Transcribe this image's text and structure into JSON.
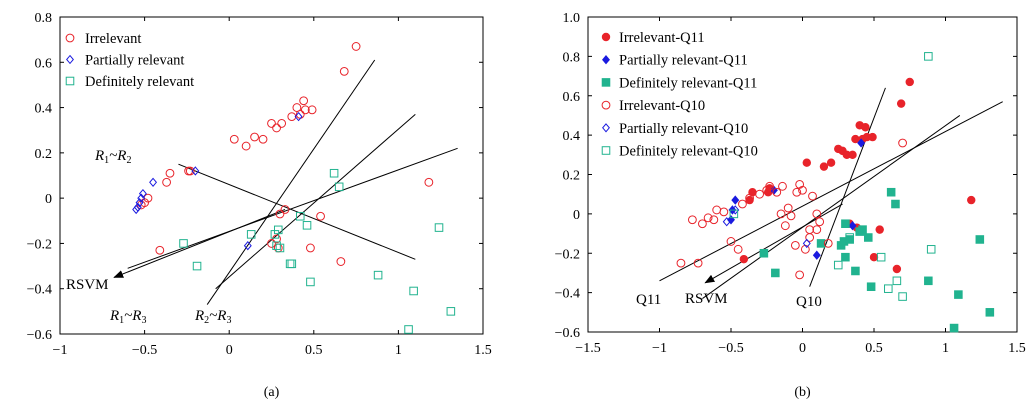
{
  "chart_data": [
    {
      "type": "scatter",
      "panel_label": "(a)",
      "xlim": [
        -1,
        1.5
      ],
      "ylim": [
        -0.6,
        0.8
      ],
      "xticks": [
        -1,
        -0.5,
        0,
        0.5,
        1,
        1.5
      ],
      "yticks": [
        -0.6,
        -0.4,
        -0.2,
        0,
        0.2,
        0.4,
        0.6,
        0.8
      ],
      "xtick_labels": [
        "−1",
        "−0.5",
        "0",
        "0.5",
        "1",
        "1.5"
      ],
      "ytick_labels": [
        "−0.6",
        "−0.4",
        "−0.2",
        "0",
        "0.2",
        "0.4",
        "0.6",
        "0.8"
      ],
      "legend_position": "top-left",
      "series": [
        {
          "name": "Irrelevant",
          "marker": "circle-open",
          "color": "#e8232a",
          "points": [
            [
              -0.52,
              -0.03
            ],
            [
              -0.5,
              -0.02
            ],
            [
              -0.48,
              0.0
            ],
            [
              -0.41,
              -0.23
            ],
            [
              -0.37,
              0.07
            ],
            [
              -0.35,
              0.11
            ],
            [
              -0.24,
              0.12
            ],
            [
              -0.23,
              0.12
            ],
            [
              0.03,
              0.26
            ],
            [
              0.1,
              0.23
            ],
            [
              0.15,
              0.27
            ],
            [
              0.2,
              0.26
            ],
            [
              0.25,
              0.33
            ],
            [
              0.28,
              0.31
            ],
            [
              0.31,
              0.33
            ],
            [
              0.25,
              -0.2
            ],
            [
              0.28,
              -0.18
            ],
            [
              0.29,
              -0.22
            ],
            [
              0.33,
              -0.05
            ],
            [
              0.37,
              0.36
            ],
            [
              0.4,
              0.4
            ],
            [
              0.42,
              0.37
            ],
            [
              0.44,
              0.43
            ],
            [
              0.45,
              0.39
            ],
            [
              0.49,
              0.39
            ],
            [
              0.54,
              -0.08
            ],
            [
              0.48,
              -0.22
            ],
            [
              0.66,
              -0.28
            ],
            [
              0.68,
              0.56
            ],
            [
              0.75,
              0.67
            ],
            [
              1.18,
              0.07
            ],
            [
              0.3,
              -0.07
            ]
          ]
        },
        {
          "name": "Partially relevant",
          "marker": "diamond-open",
          "color": "#1a1adf",
          "points": [
            [
              -0.54,
              -0.04
            ],
            [
              -0.53,
              -0.02
            ],
            [
              -0.52,
              0.0
            ],
            [
              -0.51,
              0.02
            ],
            [
              -0.2,
              0.12
            ],
            [
              -0.55,
              -0.05
            ],
            [
              0.11,
              -0.21
            ],
            [
              0.41,
              0.36
            ],
            [
              -0.45,
              0.07
            ]
          ]
        },
        {
          "name": "Definitely relevant",
          "marker": "square-open",
          "color": "#21b38f",
          "points": [
            [
              -0.27,
              -0.2
            ],
            [
              -0.19,
              -0.3
            ],
            [
              0.13,
              -0.16
            ],
            [
              0.27,
              -0.16
            ],
            [
              0.29,
              -0.14
            ],
            [
              0.3,
              -0.22
            ],
            [
              0.36,
              -0.29
            ],
            [
              0.37,
              -0.29
            ],
            [
              0.42,
              -0.08
            ],
            [
              0.46,
              -0.12
            ],
            [
              0.48,
              -0.37
            ],
            [
              0.62,
              0.11
            ],
            [
              0.65,
              0.05
            ],
            [
              0.88,
              -0.34
            ],
            [
              1.06,
              -0.58
            ],
            [
              1.09,
              -0.41
            ],
            [
              1.24,
              -0.13
            ],
            [
              1.31,
              -0.5
            ],
            [
              0.28,
              -0.21
            ]
          ]
        }
      ],
      "lines": [
        {
          "label_base": "R",
          "label_sub1": "1",
          "label_mid": "~R",
          "label_sub2": "2",
          "from": [
            -0.3,
            0.15
          ],
          "to": [
            1.1,
            -0.27
          ]
        },
        {
          "label_base": "R",
          "label_sub1": "1",
          "label_mid": "~R",
          "label_sub2": "3",
          "from": [
            -0.13,
            -0.47
          ],
          "to": [
            0.86,
            0.61
          ]
        },
        {
          "label_base": "R",
          "label_sub1": "2",
          "label_mid": "~R",
          "label_sub2": "3",
          "from": [
            -0.08,
            -0.4
          ],
          "to": [
            1.1,
            0.37
          ]
        },
        {
          "label": "",
          "from": [
            -0.6,
            -0.31
          ],
          "to": [
            1.35,
            0.22
          ]
        }
      ],
      "arrow": {
        "label": "RSVM",
        "from": [
          0.33,
          -0.05
        ],
        "to": [
          -0.68,
          -0.35
        ]
      }
    },
    {
      "type": "scatter",
      "panel_label": "(b)",
      "xlim": [
        -1.5,
        1.5
      ],
      "ylim": [
        -0.6,
        1.0
      ],
      "xticks": [
        -1.5,
        -1,
        -0.5,
        0,
        0.5,
        1,
        1.5
      ],
      "yticks": [
        -0.6,
        -0.4,
        -0.2,
        0,
        0.2,
        0.4,
        0.6,
        0.8,
        1.0
      ],
      "xtick_labels": [
        "−1.5",
        "−1",
        "−0.5",
        "0",
        "0.5",
        "1",
        "1.5"
      ],
      "ytick_labels": [
        "−0.6",
        "−0.4",
        "−0.2",
        "0",
        "0.2",
        "0.4",
        "0.6",
        "0.8",
        "1.0"
      ],
      "legend_position": "top-left",
      "series": [
        {
          "name": "Irrelevant-Q11",
          "marker": "circle-filled",
          "color": "#e8232a",
          "points": [
            [
              -0.41,
              -0.23
            ],
            [
              -0.37,
              0.07
            ],
            [
              -0.35,
              0.11
            ],
            [
              -0.24,
              0.11
            ],
            [
              -0.23,
              0.13
            ],
            [
              0.03,
              0.26
            ],
            [
              0.15,
              0.24
            ],
            [
              0.2,
              0.26
            ],
            [
              0.25,
              0.33
            ],
            [
              0.28,
              0.32
            ],
            [
              0.31,
              0.3
            ],
            [
              0.35,
              0.3
            ],
            [
              0.37,
              0.38
            ],
            [
              0.4,
              0.45
            ],
            [
              0.42,
              0.38
            ],
            [
              0.44,
              0.44
            ],
            [
              0.45,
              0.39
            ],
            [
              0.49,
              0.39
            ],
            [
              0.5,
              -0.22
            ],
            [
              0.54,
              -0.08
            ],
            [
              0.66,
              -0.28
            ],
            [
              0.69,
              0.56
            ],
            [
              0.75,
              0.67
            ],
            [
              1.18,
              0.07
            ],
            [
              0.38,
              -0.07
            ],
            [
              0.33,
              -0.05
            ]
          ]
        },
        {
          "name": "Partially relevant-Q11",
          "marker": "diamond-filled",
          "color": "#1a1adf",
          "points": [
            [
              -0.5,
              -0.03
            ],
            [
              -0.49,
              0.02
            ],
            [
              -0.47,
              0.07
            ],
            [
              -0.2,
              0.12
            ],
            [
              0.1,
              -0.21
            ],
            [
              0.41,
              0.36
            ],
            [
              0.35,
              -0.06
            ]
          ]
        },
        {
          "name": "Definitely relevant-Q11",
          "marker": "square-filled",
          "color": "#21b38f",
          "points": [
            [
              0.13,
              -0.15
            ],
            [
              0.27,
              -0.16
            ],
            [
              0.29,
              -0.14
            ],
            [
              0.3,
              -0.22
            ],
            [
              0.37,
              -0.29
            ],
            [
              0.42,
              -0.08
            ],
            [
              0.46,
              -0.12
            ],
            [
              0.48,
              -0.37
            ],
            [
              0.62,
              0.11
            ],
            [
              0.65,
              0.05
            ],
            [
              0.88,
              -0.34
            ],
            [
              1.06,
              -0.58
            ],
            [
              1.09,
              -0.41
            ],
            [
              1.24,
              -0.13
            ],
            [
              1.31,
              -0.5
            ],
            [
              0.3,
              -0.05
            ],
            [
              -0.19,
              -0.3
            ],
            [
              0.33,
              -0.13
            ],
            [
              0.4,
              -0.09
            ],
            [
              -0.27,
              -0.2
            ]
          ]
        },
        {
          "name": "Irrelevant-Q10",
          "marker": "circle-open",
          "color": "#e8232a",
          "points": [
            [
              -0.77,
              -0.03
            ],
            [
              -0.7,
              -0.05
            ],
            [
              -0.66,
              -0.02
            ],
            [
              -0.62,
              -0.03
            ],
            [
              -0.6,
              0.02
            ],
            [
              -0.55,
              0.01
            ],
            [
              -0.5,
              -0.14
            ],
            [
              -0.45,
              -0.18
            ],
            [
              -0.42,
              0.05
            ],
            [
              -0.37,
              0.08
            ],
            [
              -0.3,
              0.1
            ],
            [
              -0.25,
              0.12
            ],
            [
              -0.23,
              0.14
            ],
            [
              -0.18,
              0.11
            ],
            [
              -0.15,
              0.0
            ],
            [
              -0.14,
              0.14
            ],
            [
              -0.12,
              -0.06
            ],
            [
              -0.1,
              0.03
            ],
            [
              -0.08,
              -0.01
            ],
            [
              -0.05,
              -0.16
            ],
            [
              -0.04,
              0.11
            ],
            [
              -0.02,
              0.15
            ],
            [
              0.0,
              0.12
            ],
            [
              0.02,
              -0.18
            ],
            [
              0.05,
              -0.12
            ],
            [
              0.07,
              0.09
            ],
            [
              0.1,
              0.0
            ],
            [
              0.12,
              -0.04
            ],
            [
              0.18,
              -0.15
            ],
            [
              0.05,
              -0.08
            ],
            [
              -0.02,
              -0.31
            ],
            [
              0.1,
              -0.08
            ],
            [
              0.7,
              0.36
            ],
            [
              -0.85,
              -0.25
            ],
            [
              -0.73,
              -0.25
            ]
          ]
        },
        {
          "name": "Partially relevant-Q10",
          "marker": "diamond-open",
          "color": "#1a1adf",
          "points": [
            [
              -0.53,
              -0.04
            ],
            [
              0.03,
              -0.15
            ],
            [
              -0.47,
              0.02
            ]
          ]
        },
        {
          "name": "Definitely relevant-Q10",
          "marker": "square-open",
          "color": "#21b38f",
          "points": [
            [
              0.88,
              0.8
            ],
            [
              0.9,
              -0.18
            ],
            [
              0.66,
              -0.34
            ],
            [
              0.7,
              -0.42
            ],
            [
              0.25,
              -0.26
            ],
            [
              0.55,
              -0.22
            ],
            [
              0.6,
              -0.38
            ],
            [
              -0.48,
              0.0
            ],
            [
              0.33,
              -0.12
            ]
          ]
        }
      ],
      "lines": [
        {
          "label": "Q11",
          "from": [
            -1.0,
            -0.34
          ],
          "to": [
            1.4,
            0.57
          ]
        },
        {
          "label": "Q10",
          "from": [
            0.05,
            -0.37
          ],
          "to": [
            0.58,
            0.64
          ]
        },
        {
          "label": "",
          "from": [
            -0.7,
            -0.43
          ],
          "to": [
            1.1,
            0.5
          ]
        }
      ],
      "arrow": {
        "label": "RSVM",
        "from": [
          0.28,
          0.05
        ],
        "to": [
          -0.68,
          -0.35
        ]
      }
    }
  ]
}
